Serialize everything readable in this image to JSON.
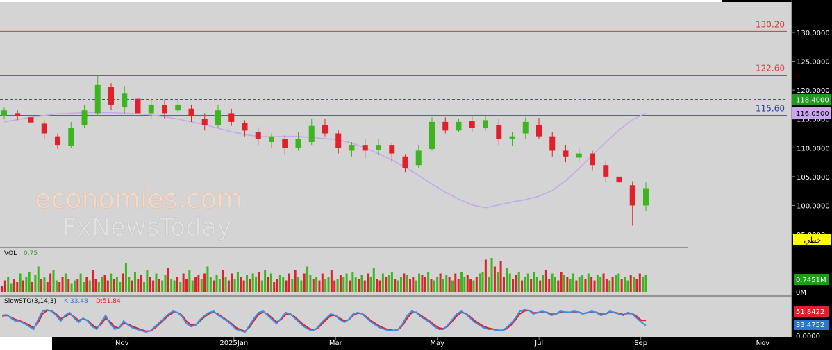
{
  "chart_data": {
    "type": "candlestick",
    "price_axis": {
      "ticks": [
        {
          "label": "130.0000",
          "value": 130
        },
        {
          "label": "125.0000",
          "value": 125
        },
        {
          "label": "120.0000",
          "value": 120
        },
        {
          "label": "115.0000",
          "value": 115
        },
        {
          "label": "110.0000",
          "value": 110
        },
        {
          "label": "105.0000",
          "value": 105
        },
        {
          "label": "100.0000",
          "value": 100
        },
        {
          "label": "95.0000",
          "value": 95
        }
      ]
    },
    "levels": [
      {
        "label": "130.20",
        "value": 130.2,
        "color": "#e0353a"
      },
      {
        "label": "122.60",
        "value": 122.6,
        "color": "#e0353a"
      },
      {
        "label": "115.60",
        "value": 115.6,
        "color": "#2b3a9c"
      }
    ],
    "dashed_level": {
      "value": 118.4,
      "color": "#0d8a0d"
    },
    "badges": [
      {
        "label": "118.4000",
        "value": 118.4,
        "color": "#1f9a1f",
        "text_color": "#ffffff"
      },
      {
        "label": "116.0500",
        "value": 116.05,
        "color": "#c9a6f0",
        "text_color": "#000000"
      }
    ],
    "ma_color": "#c9a6f0",
    "up_color": "#3cb521",
    "down_color": "#e0202a",
    "ma_values": [
      114.5,
      114.9,
      115.3,
      115.6,
      115.9,
      116.0,
      116.1,
      116.1,
      116.1,
      116.0,
      115.9,
      115.7,
      115.4,
      115.0,
      114.5,
      114.0,
      113.4,
      112.8,
      112.3,
      112.0,
      111.9,
      112.0,
      112.0,
      111.8,
      111.6,
      111.4,
      110.8,
      110.0,
      109.0,
      107.9,
      106.6,
      105.2,
      103.7,
      102.3,
      101.1,
      100.1,
      99.6,
      100.1,
      100.6,
      101.0,
      101.6,
      102.6,
      104.3,
      106.4,
      108.7,
      111.0,
      113.1,
      114.9,
      116.0
    ],
    "candles": [
      [
        115.5,
        116.5,
        117.0,
        115.0
      ],
      [
        116.0,
        115.5,
        116.5,
        114.8
      ],
      [
        115.3,
        114.4,
        116.0,
        113.5
      ],
      [
        114.2,
        112.5,
        114.8,
        111.5
      ],
      [
        112.0,
        110.5,
        112.5,
        109.8
      ],
      [
        110.4,
        113.5,
        114.5,
        110.0
      ],
      [
        114.0,
        116.5,
        117.5,
        113.5
      ],
      [
        116.0,
        121.0,
        122.6,
        115.5
      ],
      [
        120.5,
        117.5,
        121.2,
        116.5
      ],
      [
        117.0,
        119.5,
        120.7,
        116.0
      ],
      [
        118.5,
        116.0,
        119.5,
        115.0
      ],
      [
        116.0,
        117.5,
        118.5,
        115.0
      ],
      [
        117.4,
        116.0,
        118.4,
        115.0
      ],
      [
        116.5,
        117.5,
        118.3,
        116.0
      ],
      [
        116.8,
        115.5,
        117.5,
        114.5
      ],
      [
        115.0,
        114.0,
        116.0,
        113.0
      ],
      [
        114.0,
        116.5,
        117.5,
        113.5
      ],
      [
        116.0,
        114.5,
        116.8,
        113.8
      ],
      [
        114.3,
        113.0,
        114.8,
        112.0
      ],
      [
        112.8,
        111.5,
        113.6,
        110.5
      ],
      [
        111.0,
        112.0,
        112.5,
        110.0
      ],
      [
        111.5,
        110.0,
        112.2,
        108.9
      ],
      [
        110.0,
        111.5,
        112.8,
        109.5
      ],
      [
        111.0,
        113.8,
        115.0,
        110.5
      ],
      [
        114.0,
        112.5,
        115.0,
        112.0
      ],
      [
        112.5,
        110.0,
        113.0,
        109.0
      ],
      [
        109.5,
        110.5,
        111.0,
        108.5
      ],
      [
        110.5,
        109.5,
        111.5,
        108.2
      ],
      [
        109.6,
        110.5,
        111.5,
        108.8
      ],
      [
        110.5,
        109.0,
        110.8,
        107.5
      ],
      [
        108.5,
        106.5,
        108.9,
        105.8
      ],
      [
        107.0,
        109.5,
        110.5,
        106.5
      ],
      [
        109.8,
        114.5,
        115.3,
        109.5
      ],
      [
        114.5,
        113.0,
        115.3,
        112.5
      ],
      [
        113.0,
        114.5,
        115.0,
        112.8
      ],
      [
        114.6,
        113.5,
        115.5,
        112.8
      ],
      [
        113.4,
        114.8,
        115.5,
        113.0
      ],
      [
        114.0,
        111.5,
        115.0,
        110.5
      ],
      [
        111.5,
        112.0,
        112.8,
        110.3
      ],
      [
        112.5,
        114.5,
        115.3,
        111.5
      ],
      [
        114.0,
        112.0,
        115.2,
        111.5
      ],
      [
        112.0,
        109.5,
        112.8,
        108.5
      ],
      [
        109.5,
        108.5,
        110.5,
        107.5
      ],
      [
        108.3,
        109.0,
        110.0,
        107.5
      ],
      [
        109.0,
        107.0,
        109.5,
        106.0
      ],
      [
        107.0,
        105.0,
        107.8,
        104.0
      ],
      [
        105.0,
        104.0,
        106.0,
        103.0
      ],
      [
        103.5,
        100.0,
        104.2,
        96.5
      ],
      [
        100.0,
        103.0,
        104.0,
        99.0
      ]
    ],
    "volume": {
      "label": "VOL",
      "value_label": "0.75",
      "axis_label": "0.7451M",
      "zero_label": "0M",
      "values": [
        0.2,
        0.35,
        0.45,
        0.25,
        0.4,
        0.3,
        0.55,
        0.35,
        0.45,
        0.6,
        0.3,
        0.5,
        0.75,
        0.4,
        0.45,
        0.3,
        0.55,
        0.65,
        0.35,
        0.3,
        0.45,
        0.55,
        0.4,
        0.25,
        0.35,
        0.4,
        0.55,
        0.3,
        0.45,
        0.35,
        0.65,
        0.4,
        0.3,
        0.45,
        0.5,
        0.35,
        0.55,
        0.4,
        0.45,
        0.3,
        0.55,
        0.85,
        0.45,
        0.35,
        0.6,
        0.4,
        0.5,
        0.3,
        0.65,
        0.45,
        0.35,
        0.55,
        0.4,
        0.35,
        0.5,
        0.7,
        0.4,
        0.35,
        0.45,
        0.3,
        0.55,
        0.4,
        0.65,
        0.35,
        0.45,
        0.5,
        0.4,
        0.55,
        0.75,
        0.45,
        0.35,
        0.5,
        0.4,
        0.65,
        0.45,
        0.35,
        0.55,
        0.4,
        0.6,
        0.45,
        0.35,
        0.5,
        0.4,
        0.55,
        0.45,
        0.6,
        0.35,
        0.65,
        0.45,
        0.55,
        0.3,
        0.4,
        0.5,
        0.45,
        0.35,
        0.55,
        0.4,
        0.65,
        0.45,
        0.35,
        0.55,
        0.75,
        0.5,
        0.4,
        0.45,
        0.35,
        0.55,
        0.4,
        0.45,
        0.65,
        0.35,
        0.4,
        0.5,
        0.45,
        0.55,
        0.35,
        0.6,
        0.45,
        0.4,
        0.5,
        0.35,
        0.55,
        0.45,
        0.7,
        0.4,
        0.35,
        0.55,
        0.45,
        0.5,
        0.6,
        0.4,
        0.35,
        0.45,
        0.55,
        0.5,
        0.4,
        0.45,
        0.35,
        0.55,
        0.5,
        0.45,
        0.6,
        0.4,
        0.35,
        0.45,
        0.55,
        0.4,
        0.5,
        0.45,
        0.35,
        0.55,
        0.4,
        0.6,
        0.45,
        0.5,
        0.4,
        0.35,
        0.45,
        0.55,
        0.6,
        0.95,
        0.45,
        1.0,
        0.75,
        0.6,
        0.9,
        0.45,
        0.7,
        0.55,
        0.4,
        0.5,
        0.6,
        0.35,
        0.45,
        0.55,
        0.4,
        0.6,
        0.45,
        0.35,
        0.5,
        0.65,
        0.4,
        0.55,
        0.45,
        0.35,
        0.6,
        0.5,
        0.45,
        0.4,
        0.55,
        0.35,
        0.45,
        0.5,
        0.4,
        0.55,
        0.45,
        0.35,
        0.5,
        0.45,
        0.55,
        0.4,
        0.35,
        0.45,
        0.5,
        0.55,
        0.4,
        0.45,
        0.35,
        0.5,
        0.45,
        0.4,
        0.55,
        0.45,
        0.5
      ]
    },
    "stochastic": {
      "label": "SlowSTO(3,14,3)",
      "k_label": "K:33.48",
      "d_label": "D:51.84",
      "k_color": "#3a8ee6",
      "d_color": "#e0202a",
      "values_k": [
        70,
        72,
        60,
        50,
        48,
        40,
        30,
        20,
        55,
        85,
        90,
        85,
        70,
        50,
        70,
        80,
        60,
        45,
        60,
        50,
        30,
        20,
        45,
        70,
        40,
        20,
        25,
        50,
        35,
        25,
        20,
        15,
        10,
        15,
        30,
        45,
        60,
        75,
        85,
        80,
        65,
        40,
        30,
        35,
        55,
        70,
        80,
        85,
        70,
        60,
        50,
        35,
        20,
        15,
        10,
        35,
        60,
        80,
        85,
        70,
        55,
        40,
        60,
        80,
        75,
        60,
        45,
        30,
        20,
        15,
        25,
        45,
        60,
        75,
        70,
        55,
        45,
        55,
        75,
        80,
        75,
        60,
        45,
        35,
        25,
        20,
        15,
        15,
        20,
        40,
        70,
        85,
        80,
        65,
        55,
        45,
        30,
        20,
        20,
        35,
        55,
        75,
        85,
        75,
        60,
        45,
        35,
        25,
        20,
        20,
        15,
        15,
        25,
        40,
        60,
        85,
        90,
        88,
        75,
        80,
        85,
        80,
        70,
        75,
        85,
        82,
        80,
        85,
        82,
        75,
        80,
        85,
        80,
        70,
        75,
        85,
        80,
        75,
        70,
        80,
        75,
        60,
        45,
        33.48
      ],
      "values_d": [
        68,
        70,
        63,
        55,
        50,
        43,
        35,
        25,
        45,
        75,
        88,
        86,
        75,
        58,
        65,
        75,
        65,
        52,
        58,
        52,
        36,
        25,
        38,
        60,
        47,
        28,
        25,
        42,
        38,
        30,
        24,
        18,
        13,
        14,
        25,
        40,
        55,
        70,
        80,
        80,
        70,
        48,
        35,
        35,
        50,
        65,
        76,
        82,
        74,
        63,
        53,
        40,
        26,
        18,
        13,
        28,
        52,
        73,
        82,
        74,
        60,
        46,
        56,
        73,
        75,
        65,
        50,
        36,
        25,
        18,
        22,
        38,
        54,
        69,
        70,
        60,
        50,
        54,
        70,
        78,
        76,
        64,
        50,
        40,
        30,
        23,
        18,
        16,
        19,
        34,
        60,
        79,
        81,
        70,
        59,
        49,
        36,
        25,
        22,
        31,
        49,
        68,
        80,
        77,
        65,
        51,
        40,
        30,
        24,
        21,
        17,
        16,
        21,
        34,
        53,
        75,
        86,
        88,
        79,
        80,
        83,
        81,
        74,
        75,
        81,
        82,
        81,
        83,
        82,
        77,
        79,
        83,
        81,
        74,
        75,
        81,
        81,
        77,
        73,
        77,
        76,
        66,
        52,
        51.84
      ],
      "badge_d": "51.8422",
      "badge_k": "33.4752",
      "zero_label": "0.0000"
    },
    "time_axis": {
      "labels": [
        {
          "text": "Nov",
          "index": 24
        },
        {
          "text": "2025Jan",
          "index": 46
        },
        {
          "text": "Mar",
          "index": 66
        },
        {
          "text": "May",
          "index": 86
        },
        {
          "text": "Jul",
          "index": 106
        },
        {
          "text": "Sep",
          "index": 126
        },
        {
          "text": "Nov",
          "index": 150
        }
      ],
      "total_slots": 155
    }
  },
  "watermark": {
    "line1": "economies.com",
    "line2": "FxNewsToday"
  },
  "mode_badge": "خطي"
}
